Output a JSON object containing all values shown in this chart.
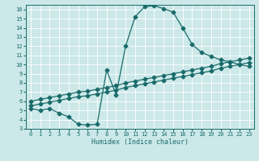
{
  "xlabel": "Humidex (Indice chaleur)",
  "ylabel": "",
  "xlim": [
    -0.5,
    23.5
  ],
  "ylim": [
    3,
    16.5
  ],
  "yticks": [
    3,
    4,
    5,
    6,
    7,
    8,
    9,
    10,
    11,
    12,
    13,
    14,
    15,
    16
  ],
  "xticks": [
    0,
    1,
    2,
    3,
    4,
    5,
    6,
    7,
    8,
    9,
    10,
    11,
    12,
    13,
    14,
    15,
    16,
    17,
    18,
    19,
    20,
    21,
    22,
    23
  ],
  "bg_color": "#cce8e8",
  "grid_color": "#b0d0d0",
  "line_color": "#1a6b6b",
  "curve1_x": [
    0,
    1,
    2,
    3,
    4,
    5,
    6,
    7,
    8,
    9,
    10,
    11,
    12,
    13,
    14,
    15,
    16,
    17,
    18,
    19,
    20,
    21,
    22,
    23
  ],
  "curve1_y": [
    5.2,
    5.0,
    5.2,
    4.7,
    4.3,
    3.5,
    3.4,
    3.5,
    9.4,
    6.7,
    12.0,
    15.2,
    16.3,
    16.4,
    16.1,
    15.7,
    14.0,
    12.2,
    11.3,
    10.9,
    10.5,
    10.3,
    10.0,
    9.8
  ],
  "curve2_x": [
    0,
    1,
    2,
    3,
    4,
    5,
    6,
    7,
    8,
    9,
    10,
    11,
    12,
    13,
    14,
    15,
    16,
    17,
    18,
    19,
    20,
    21,
    22,
    23
  ],
  "curve2_y": [
    5.5,
    5.7,
    5.9,
    6.1,
    6.3,
    6.5,
    6.6,
    6.8,
    7.0,
    7.2,
    7.5,
    7.7,
    7.9,
    8.1,
    8.3,
    8.5,
    8.7,
    8.9,
    9.1,
    9.3,
    9.6,
    9.8,
    10.0,
    10.2
  ],
  "curve3_x": [
    0,
    1,
    2,
    3,
    4,
    5,
    6,
    7,
    8,
    9,
    10,
    11,
    12,
    13,
    14,
    15,
    16,
    17,
    18,
    19,
    20,
    21,
    22,
    23
  ],
  "curve3_y": [
    6.0,
    6.2,
    6.4,
    6.6,
    6.8,
    7.0,
    7.1,
    7.3,
    7.5,
    7.7,
    8.0,
    8.2,
    8.4,
    8.6,
    8.8,
    9.0,
    9.2,
    9.4,
    9.6,
    9.8,
    10.1,
    10.3,
    10.5,
    10.7
  ],
  "markersize": 2.5,
  "linewidth": 0.9
}
